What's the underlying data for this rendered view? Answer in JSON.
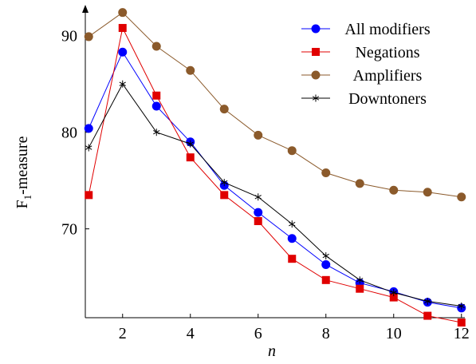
{
  "chart_data": {
    "type": "line",
    "xlabel": "n",
    "ylabel": "F1-measure",
    "xlim": [
      0.9,
      12.1
    ],
    "ylim": [
      60.8,
      93.2
    ],
    "x_ticks": [
      2,
      4,
      6,
      8,
      10,
      12
    ],
    "y_ticks": [
      70,
      80,
      90
    ],
    "x": [
      1,
      2,
      3,
      4,
      5,
      6,
      7,
      8,
      9,
      10,
      11,
      12
    ],
    "legend_position": "top-right",
    "grid": false,
    "series": [
      {
        "name": "All modifiers",
        "color": "#0000ff",
        "marker": "circle",
        "values": [
          80.4,
          88.3,
          82.7,
          79.0,
          74.5,
          71.7,
          69.0,
          66.3,
          64.4,
          63.5,
          62.4,
          61.8
        ]
      },
      {
        "name": "Negations",
        "color": "#e00000",
        "marker": "square",
        "values": [
          73.5,
          90.8,
          83.8,
          77.4,
          73.5,
          70.8,
          66.9,
          64.7,
          63.8,
          62.9,
          61.0,
          60.3
        ]
      },
      {
        "name": "Amplifiers",
        "color": "#8b5a2b",
        "marker": "circle",
        "values": [
          89.9,
          92.4,
          88.9,
          86.4,
          82.4,
          79.7,
          78.1,
          75.8,
          74.7,
          74.0,
          73.8,
          73.3
        ]
      },
      {
        "name": "Downtoners",
        "color": "#000000",
        "marker": "star",
        "values": [
          78.4,
          85.0,
          80.0,
          78.8,
          74.8,
          73.3,
          70.5,
          67.2,
          64.7,
          63.4,
          62.5,
          62.0
        ]
      }
    ]
  }
}
